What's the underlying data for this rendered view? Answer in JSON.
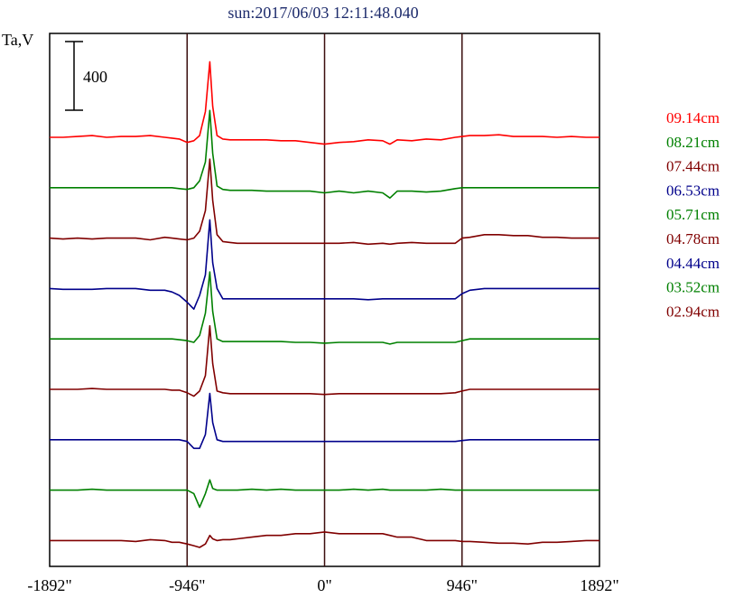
{
  "chart_data": {
    "type": "line",
    "title": "sun:2017/06/03 12:11:48.040",
    "ylabel": "Ta,V",
    "scale_bar_label": "400",
    "x_ticks": [
      {
        "value": -1892,
        "label": "-1892\""
      },
      {
        "value": -946,
        "label": "-946\""
      },
      {
        "value": 0,
        "label": "0\""
      },
      {
        "value": 946,
        "label": "946\""
      },
      {
        "value": 1892,
        "label": "1892\""
      }
    ],
    "xlim": [
      -1892,
      1892
    ],
    "vertical_gridlines": [
      -946,
      0,
      946
    ],
    "x": [
      -1892,
      -1800,
      -1700,
      -1600,
      -1500,
      -1400,
      -1300,
      -1200,
      -1100,
      -1050,
      -1000,
      -946,
      -900,
      -860,
      -820,
      -790,
      -770,
      -740,
      -700,
      -650,
      -600,
      -500,
      -400,
      -300,
      -200,
      -100,
      0,
      100,
      200,
      300,
      400,
      450,
      500,
      600,
      700,
      800,
      900,
      946,
      1000,
      1100,
      1200,
      1300,
      1400,
      1500,
      1600,
      1700,
      1800,
      1892
    ],
    "series": [
      {
        "name": "09.14cm",
        "color": "#ff0000",
        "baseline": 0,
        "values": [
          0,
          0,
          5,
          10,
          0,
          5,
          5,
          10,
          0,
          -5,
          -10,
          -30,
          -20,
          10,
          150,
          440,
          180,
          10,
          -10,
          -15,
          -15,
          -15,
          -15,
          -20,
          -20,
          -30,
          -40,
          -30,
          -25,
          -15,
          -20,
          -40,
          -15,
          -20,
          -10,
          -15,
          0,
          5,
          10,
          10,
          15,
          5,
          5,
          5,
          0,
          5,
          0,
          0
        ]
      },
      {
        "name": "08.21cm",
        "color": "#008000",
        "baseline": 0,
        "values": [
          0,
          0,
          0,
          0,
          0,
          0,
          0,
          0,
          0,
          0,
          -5,
          -10,
          0,
          40,
          150,
          450,
          200,
          10,
          -10,
          -15,
          -15,
          -15,
          -20,
          -20,
          -20,
          -20,
          -30,
          -20,
          -30,
          -20,
          -30,
          -60,
          -20,
          -20,
          -25,
          -20,
          -5,
          0,
          0,
          0,
          0,
          0,
          0,
          0,
          0,
          0,
          0,
          0
        ]
      },
      {
        "name": "07.44cm",
        "color": "#800000",
        "baseline": 0,
        "values": [
          0,
          -5,
          0,
          -5,
          0,
          0,
          0,
          -10,
          5,
          0,
          -5,
          -10,
          0,
          40,
          160,
          460,
          220,
          20,
          -20,
          -25,
          -30,
          -30,
          -30,
          -30,
          -30,
          -30,
          -30,
          -30,
          -25,
          -35,
          -30,
          -35,
          -30,
          -25,
          -30,
          -30,
          -30,
          0,
          5,
          20,
          20,
          15,
          15,
          5,
          5,
          0,
          0,
          0
        ]
      },
      {
        "name": "06.53cm",
        "color": "#00008b",
        "baseline": 0,
        "values": [
          0,
          -5,
          -5,
          -5,
          0,
          0,
          0,
          -10,
          -10,
          -20,
          -40,
          -80,
          -120,
          -40,
          80,
          400,
          150,
          0,
          -60,
          -60,
          -60,
          -60,
          -60,
          -60,
          -60,
          -60,
          -60,
          -60,
          -60,
          -65,
          -60,
          -60,
          -60,
          -60,
          -60,
          -60,
          -60,
          -30,
          -10,
          0,
          0,
          0,
          0,
          0,
          0,
          0,
          0,
          0
        ]
      },
      {
        "name": "05.71cm",
        "color": "#008000",
        "baseline": 0,
        "values": [
          0,
          0,
          0,
          0,
          0,
          0,
          0,
          0,
          0,
          0,
          -5,
          -10,
          -20,
          20,
          150,
          390,
          160,
          0,
          -15,
          -15,
          -15,
          -15,
          -15,
          -15,
          -20,
          -20,
          -25,
          -20,
          -20,
          -20,
          -20,
          -30,
          -20,
          -20,
          -20,
          -20,
          -20,
          -10,
          0,
          0,
          0,
          0,
          0,
          0,
          0,
          0,
          0,
          0
        ]
      },
      {
        "name": "04.78cm",
        "color": "#800000",
        "baseline": 0,
        "values": [
          0,
          0,
          0,
          5,
          0,
          0,
          0,
          0,
          0,
          -5,
          -5,
          -20,
          -40,
          -10,
          80,
          370,
          150,
          -10,
          -20,
          -25,
          -25,
          -25,
          -25,
          -25,
          -25,
          -25,
          -30,
          -25,
          -25,
          -25,
          -25,
          -25,
          -25,
          -25,
          -25,
          -25,
          -20,
          -10,
          0,
          0,
          0,
          0,
          0,
          0,
          0,
          0,
          0,
          0
        ]
      },
      {
        "name": "04.44cm",
        "color": "#00008b",
        "baseline": 0,
        "values": [
          0,
          0,
          0,
          0,
          0,
          0,
          0,
          0,
          0,
          0,
          0,
          -10,
          -50,
          -50,
          30,
          270,
          100,
          0,
          -10,
          -10,
          -10,
          -10,
          -10,
          -10,
          -10,
          -10,
          -10,
          -10,
          -10,
          -10,
          -10,
          -10,
          -10,
          -10,
          -10,
          -10,
          -10,
          -5,
          0,
          0,
          0,
          0,
          0,
          0,
          0,
          0,
          0,
          0
        ]
      },
      {
        "name": "03.52cm",
        "color": "#008000",
        "baseline": 0,
        "values": [
          0,
          0,
          0,
          5,
          0,
          0,
          0,
          0,
          0,
          0,
          0,
          0,
          -20,
          -100,
          -20,
          60,
          10,
          0,
          0,
          0,
          0,
          5,
          0,
          5,
          0,
          0,
          0,
          0,
          5,
          0,
          5,
          0,
          0,
          0,
          0,
          5,
          0,
          0,
          0,
          0,
          0,
          0,
          0,
          0,
          0,
          0,
          0,
          0
        ]
      },
      {
        "name": "02.94cm",
        "color": "#800000",
        "baseline": 0,
        "values": [
          0,
          0,
          0,
          0,
          0,
          0,
          -5,
          5,
          0,
          -10,
          -10,
          -20,
          -30,
          -40,
          -20,
          30,
          10,
          0,
          5,
          5,
          10,
          20,
          30,
          30,
          40,
          40,
          50,
          40,
          40,
          40,
          40,
          30,
          20,
          20,
          0,
          0,
          0,
          -5,
          -5,
          -10,
          -15,
          -15,
          -20,
          -10,
          -10,
          -5,
          0,
          0
        ]
      }
    ]
  }
}
